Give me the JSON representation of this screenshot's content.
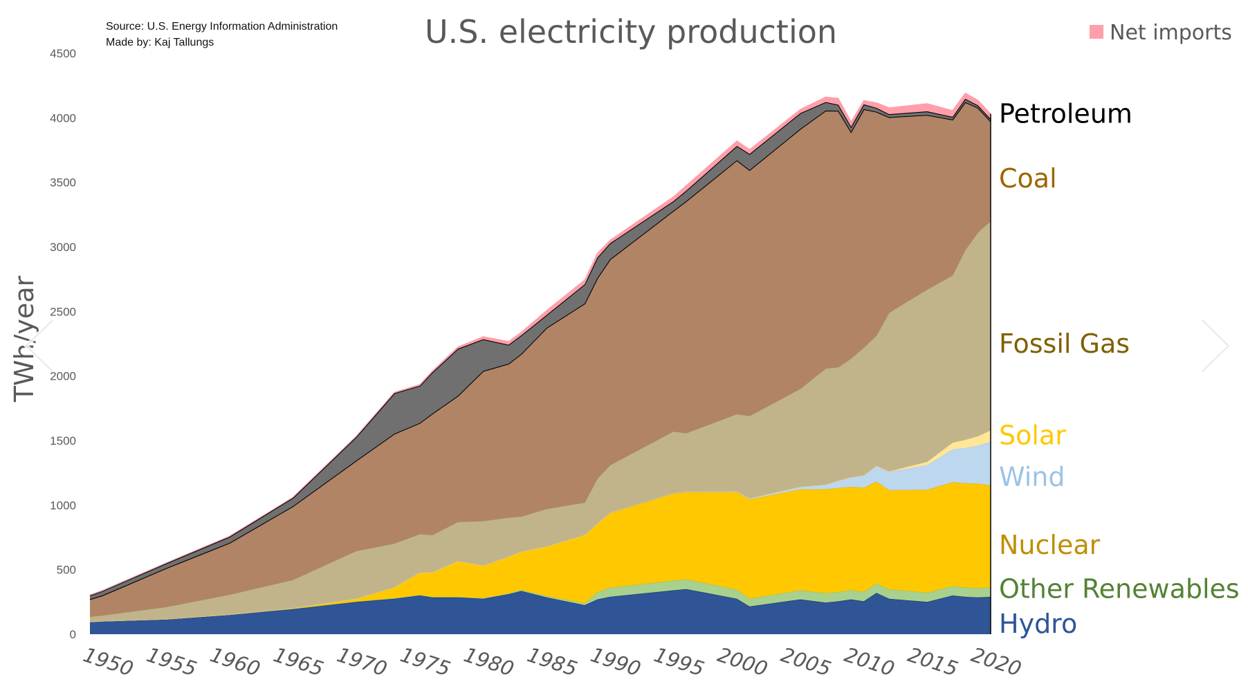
{
  "colors": {
    "hydro": "#2f5597",
    "other_renewables": "#a9d18e",
    "nuclear": "#ffc800",
    "wind": "#bdd7ee",
    "solar": "#ffe699",
    "fossil_gas": "#c2b48a",
    "coal": "#b18466",
    "petroleum": "#707070",
    "net_imports": "#ff9fa9",
    "label_hydro": "#2f5597",
    "label_other_renewables": "#548235",
    "label_nuclear": "#bf8f00",
    "label_wind": "#9dc3e6",
    "label_solar": "#ffc800",
    "label_fossil_gas": "#7f6000",
    "label_coal": "#9c6500",
    "label_petroleum": "#000000"
  },
  "nav": {
    "prev_icon": "chevron-left-icon",
    "next_icon": "chevron-right-icon"
  },
  "chart_data": {
    "type": "area",
    "stacked": true,
    "title": "U.S. electricity production",
    "source": "Source: U.S. Energy Information Administration",
    "made_by": "Made by: Kaj Tallungs",
    "ylabel": "TWh/year",
    "xlabel": "",
    "xlim": [
      1949,
      2020
    ],
    "ylim": [
      0,
      4500
    ],
    "yticks": [
      "0",
      "500",
      "1000",
      "1500",
      "2000",
      "2500",
      "3000",
      "3500",
      "4000",
      "4500"
    ],
    "xticks": [
      "1950",
      "1955",
      "1960",
      "1965",
      "1970",
      "1975",
      "1980",
      "1985",
      "1990",
      "1995",
      "2000",
      "2005",
      "2010",
      "2015",
      "2020"
    ],
    "legend": [
      "Net imports"
    ],
    "x_key": [
      1949,
      1950,
      1955,
      1960,
      1965,
      1970,
      1973,
      1975,
      1976,
      1978,
      1980,
      1982,
      1983,
      1985,
      1988,
      1989,
      1990,
      1995,
      1996,
      2000,
      2001,
      2005,
      2007,
      2008,
      2009,
      2010,
      2011,
      2012,
      2015,
      2017,
      2018,
      2019,
      2020
    ],
    "series": [
      {
        "name": "Hydro",
        "label": "Hydro",
        "values": [
          95,
          100,
          115,
          150,
          195,
          250,
          275,
          300,
          285,
          285,
          275,
          310,
          335,
          285,
          225,
          270,
          290,
          340,
          350,
          275,
          215,
          270,
          245,
          255,
          270,
          255,
          320,
          275,
          250,
          300,
          290,
          285,
          290
        ]
      },
      {
        "name": "Other Renewables",
        "label": "Other Renewables",
        "values": [
          1,
          1,
          1,
          1,
          2,
          3,
          4,
          4,
          4,
          4,
          5,
          6,
          8,
          10,
          15,
          55,
          70,
          75,
          75,
          70,
          60,
          70,
          72,
          72,
          72,
          72,
          72,
          72,
          72,
          72,
          72,
          72,
          72
        ]
      },
      {
        "name": "Nuclear",
        "label": "Nuclear",
        "values": [
          0,
          0,
          0,
          1,
          4,
          22,
          84,
          172,
          190,
          276,
          251,
          283,
          295,
          384,
          527,
          530,
          577,
          673,
          675,
          754,
          769,
          782,
          806,
          806,
          799,
          807,
          790,
          769,
          797,
          805,
          807,
          809,
          790
        ]
      },
      {
        "name": "Wind",
        "label": "Wind",
        "values": [
          0,
          0,
          0,
          0,
          0,
          0,
          0,
          0,
          0,
          0,
          0,
          0,
          0,
          0,
          0,
          0,
          3,
          3,
          3,
          6,
          7,
          18,
          34,
          55,
          74,
          95,
          120,
          141,
          191,
          254,
          273,
          295,
          338
        ]
      },
      {
        "name": "Solar",
        "label": "Solar",
        "values": [
          0,
          0,
          0,
          0,
          0,
          0,
          0,
          0,
          0,
          0,
          0,
          0,
          0,
          0,
          0,
          0,
          0,
          0,
          0,
          0,
          0,
          1,
          1,
          1,
          1,
          1,
          2,
          4,
          25,
          53,
          64,
          72,
          90
        ]
      },
      {
        "name": "Fossil Gas",
        "label": "Fossil Gas",
        "values": [
          40,
          45,
          95,
          155,
          220,
          370,
          340,
          300,
          290,
          305,
          346,
          305,
          274,
          292,
          253,
          350,
          370,
          480,
          455,
          600,
          640,
          760,
          900,
          880,
          920,
          990,
          1010,
          1230,
          1335,
          1296,
          1470,
          1580,
          1620
        ]
      },
      {
        "name": "Coal",
        "label": "Coal",
        "values": [
          135,
          155,
          300,
          400,
          570,
          700,
          850,
          860,
          940,
          976,
          1162,
          1191,
          1259,
          1402,
          1541,
          1554,
          1594,
          1709,
          1796,
          1966,
          1904,
          2013,
          1998,
          1986,
          1756,
          1847,
          1733,
          1514,
          1352,
          1206,
          1146,
          965,
          774
        ]
      },
      {
        "name": "Petroleum",
        "label": "Petroleum",
        "values": [
          28,
          34,
          37,
          48,
          65,
          184,
          314,
          289,
          320,
          365,
          246,
          147,
          144,
          100,
          149,
          158,
          124,
          74,
          81,
          111,
          125,
          122,
          66,
          46,
          39,
          37,
          30,
          23,
          28,
          21,
          25,
          18,
          17
        ]
      },
      {
        "name": "Net imports",
        "label": "Net imports",
        "values": [
          2,
          2,
          3,
          4,
          5,
          6,
          8,
          10,
          12,
          15,
          20,
          25,
          25,
          35,
          35,
          35,
          25,
          35,
          40,
          40,
          35,
          30,
          40,
          50,
          40,
          30,
          40,
          50,
          60,
          50,
          45,
          40,
          40
        ]
      }
    ]
  }
}
